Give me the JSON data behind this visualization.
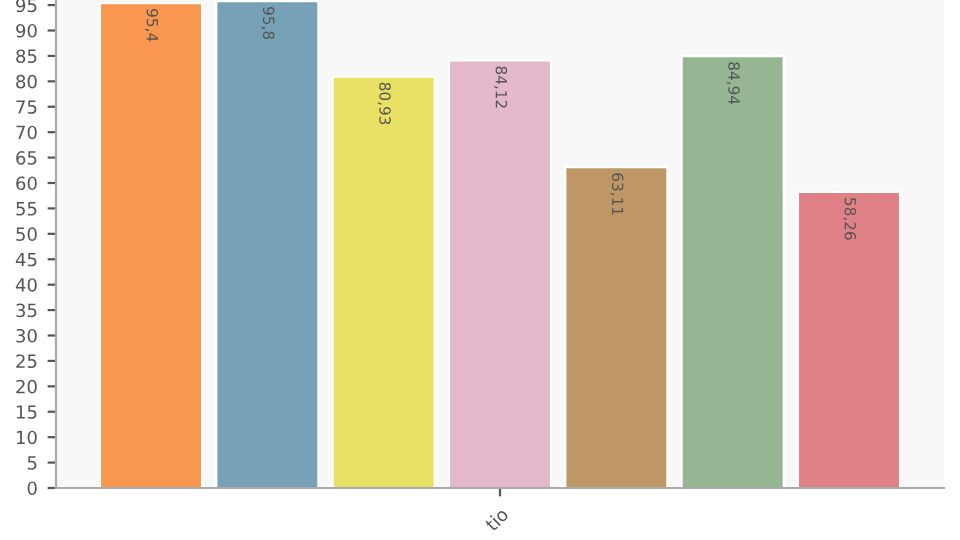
{
  "chart_data": {
    "type": "bar",
    "categories": [
      "tio"
    ],
    "series": [
      {
        "color": "#f9964f",
        "values": [
          95.4
        ],
        "value_labels": [
          "95,4"
        ]
      },
      {
        "color": "#77a1b7",
        "values": [
          95.8
        ],
        "value_labels": [
          "95,8"
        ]
      },
      {
        "color": "#e9e165",
        "values": [
          80.93
        ],
        "value_labels": [
          "80,93"
        ]
      },
      {
        "color": "#e3b9cb",
        "values": [
          84.12
        ],
        "value_labels": [
          "84,12"
        ]
      },
      {
        "color": "#bf9767",
        "values": [
          63.11
        ],
        "value_labels": [
          "63,11"
        ]
      },
      {
        "color": "#96b592",
        "values": [
          84.94
        ],
        "value_labels": [
          "84,94"
        ]
      },
      {
        "color": "#e08187",
        "values": [
          58.26
        ],
        "value_labels": [
          "58,26"
        ]
      }
    ],
    "ylim": [
      0,
      96
    ],
    "yticks": [
      0,
      5,
      10,
      15,
      20,
      25,
      30,
      35,
      40,
      45,
      50,
      55,
      60,
      65,
      70,
      75,
      80,
      85,
      90,
      95
    ],
    "grid": false,
    "legend": false
  }
}
